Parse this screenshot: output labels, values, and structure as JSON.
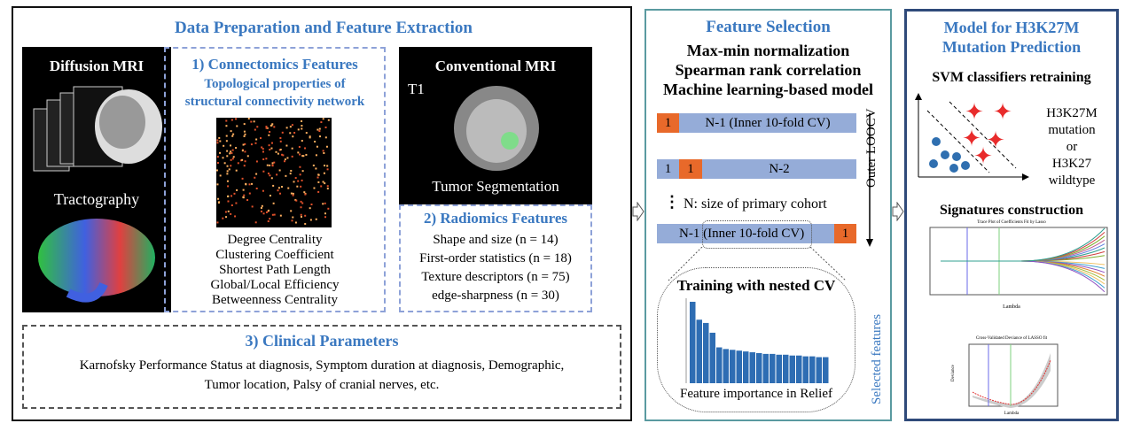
{
  "panel1": {
    "title": "Data Preparation and Feature Extraction",
    "diffusion": {
      "title": "Diffusion MRI",
      "tractography": "Tractography"
    },
    "connectomics": {
      "title": "1) Connectomics Features",
      "subtitle1": "Topological properties of",
      "subtitle2": "structural connectivity network",
      "items": [
        "Degree Centrality",
        "Clustering Coefficient",
        "Shortest Path Length",
        "Global/Local Efficiency",
        "Betweenness Centrality"
      ]
    },
    "conventional": {
      "title": "Conventional MRI",
      "t1": "T1",
      "seg": "Tumor Segmentation"
    },
    "radiomics": {
      "title": "2) Radiomics Features",
      "items": [
        "Shape and size (n = 14)",
        "First-order statistics (n = 18)",
        "Texture descriptors (n = 75)",
        "edge-sharpness (n = 30)"
      ]
    },
    "clinical": {
      "title": "3) Clinical Parameters",
      "line1": "Karnofsky Performance Status at diagnosis, Symptom duration at diagnosis, Demographic,",
      "line2": "Tumor location, Palsy of cranial nerves, etc."
    }
  },
  "panel2": {
    "title": "Feature Selection",
    "methods": [
      "Max-min normalization",
      "Spearman rank correlation",
      "Machine learning-based model"
    ],
    "bar1": {
      "test": "1",
      "train": "N-1 (Inner 10-fold CV)"
    },
    "bar2": {
      "first": "1",
      "test": "1",
      "train": "N-2"
    },
    "dots": "⋮",
    "cohort_note": "N: size of primary cohort",
    "bar3": {
      "train": "N-1 (Inner 10-fold CV)",
      "test": "1"
    },
    "outer": "Outer LOOCV",
    "training": "Training with nested CV",
    "importance": "Feature importance in Relief",
    "selected": "Selected features",
    "relief_values": [
      1.0,
      0.78,
      0.74,
      0.62,
      0.44,
      0.42,
      0.41,
      0.4,
      0.39,
      0.38,
      0.37,
      0.36,
      0.36,
      0.35,
      0.35,
      0.34,
      0.34,
      0.33,
      0.33,
      0.32,
      0.32
    ]
  },
  "panel3": {
    "title1": "Model for H3K27M",
    "title2": "Mutation Prediction",
    "svm": "SVM classifiers retraining",
    "class1a": "H3K27M",
    "class1b": "mutation",
    "or": "or",
    "class2a": "H3K27",
    "class2b": "wildtype",
    "signatures": "Signatures construction",
    "trace_title": "Trace Plot of Coefficients Fit by Lasso",
    "cv_title": "Cross-Validated Deviance of LASSO fit",
    "xlabel": "Lambda",
    "ylabel": "Deviance"
  },
  "colors": {
    "accent": "#3a78c0",
    "test_fold": "#e8692a",
    "train_fold": "#95acd8",
    "panel2_border": "#5a9aa0",
    "panel3_border": "#2f4a7a"
  }
}
